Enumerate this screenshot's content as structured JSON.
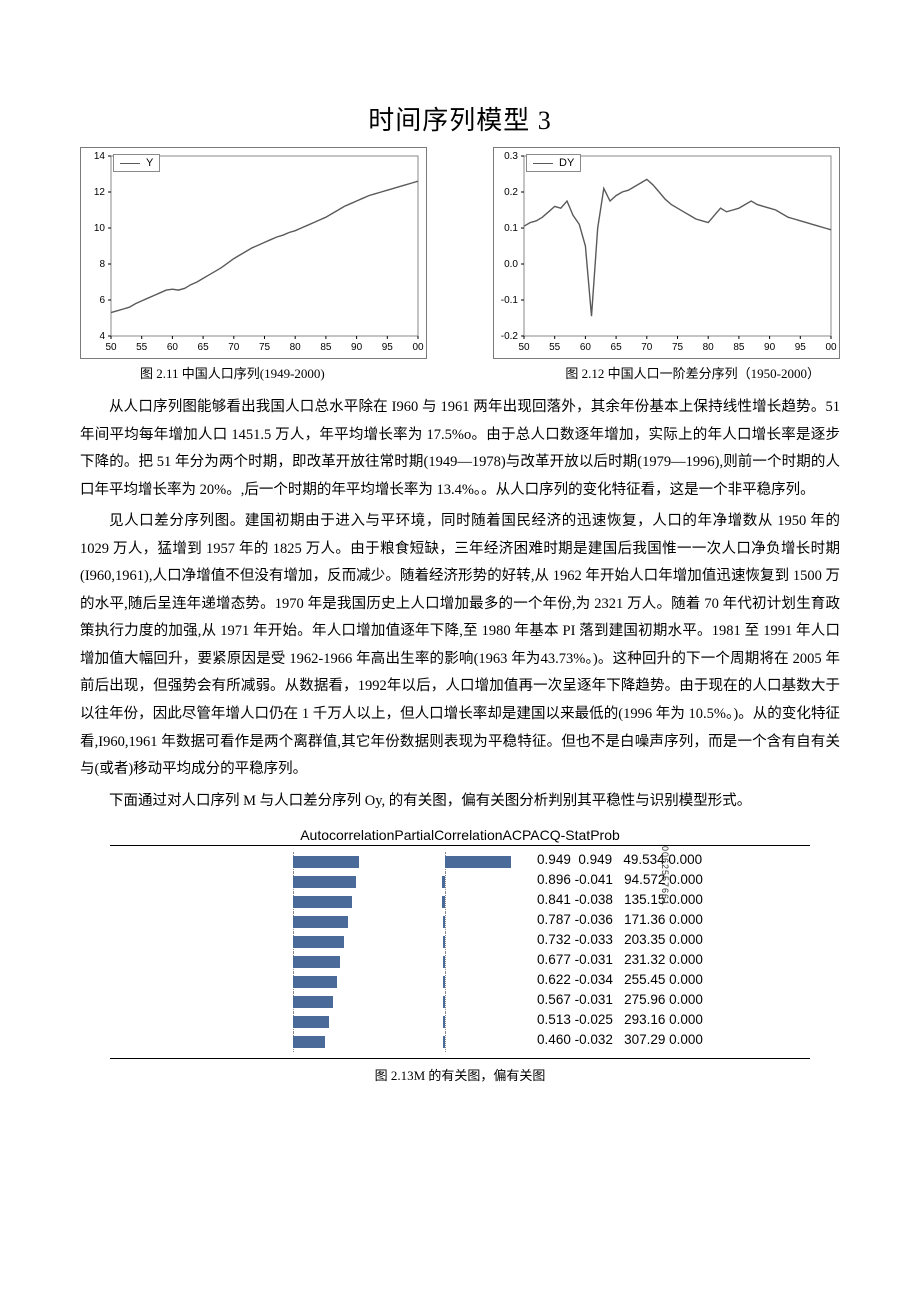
{
  "title": "时间序列模型 3",
  "chart_left": {
    "type": "line",
    "legend": "Y",
    "xlim": [
      50,
      100
    ],
    "ylim": [
      4,
      14
    ],
    "xticks": [
      50,
      55,
      60,
      65,
      70,
      75,
      80,
      85,
      90,
      95,
      100
    ],
    "xtick_labels": [
      "50",
      "55",
      "60",
      "65",
      "70",
      "75",
      "80",
      "85",
      "90",
      "95",
      "00"
    ],
    "yticks": [
      4,
      6,
      8,
      10,
      12,
      14
    ],
    "line_color": "#5a5a5a",
    "border_color": "#7a7a7a",
    "points_x": [
      50,
      51,
      52,
      53,
      54,
      55,
      56,
      57,
      58,
      59,
      60,
      61,
      62,
      63,
      64,
      65,
      66,
      67,
      68,
      69,
      70,
      71,
      72,
      73,
      74,
      75,
      76,
      77,
      78,
      79,
      80,
      81,
      82,
      83,
      84,
      85,
      86,
      87,
      88,
      89,
      90,
      91,
      92,
      93,
      94,
      95,
      96,
      97,
      98,
      99,
      100
    ],
    "points_y": [
      5.3,
      5.4,
      5.5,
      5.6,
      5.8,
      5.95,
      6.1,
      6.25,
      6.4,
      6.55,
      6.6,
      6.55,
      6.65,
      6.85,
      7.0,
      7.2,
      7.4,
      7.6,
      7.8,
      8.05,
      8.3,
      8.5,
      8.7,
      8.9,
      9.05,
      9.2,
      9.35,
      9.5,
      9.6,
      9.75,
      9.85,
      10.0,
      10.15,
      10.3,
      10.45,
      10.6,
      10.8,
      11.0,
      11.2,
      11.35,
      11.5,
      11.65,
      11.8,
      11.9,
      12.0,
      12.1,
      12.2,
      12.3,
      12.4,
      12.5,
      12.6
    ],
    "caption": "图 2.11 中国人口序列(1949-2000)"
  },
  "chart_right": {
    "type": "line",
    "legend": "DY",
    "xlim": [
      50,
      100
    ],
    "ylim": [
      -0.2,
      0.3
    ],
    "xticks": [
      50,
      55,
      60,
      65,
      70,
      75,
      80,
      85,
      90,
      95,
      100
    ],
    "xtick_labels": [
      "50",
      "55",
      "60",
      "65",
      "70",
      "75",
      "80",
      "85",
      "90",
      "95",
      "00"
    ],
    "yticks": [
      -0.2,
      -0.1,
      0.0,
      0.1,
      0.2,
      0.3
    ],
    "ytick_labels": [
      "-0.2",
      "-0.1",
      "0.0",
      "0.1",
      "0.2",
      "0.3"
    ],
    "line_color": "#5a5a5a",
    "border_color": "#7a7a7a",
    "points_x": [
      50,
      51,
      52,
      53,
      54,
      55,
      56,
      57,
      58,
      59,
      60,
      61,
      62,
      63,
      64,
      65,
      66,
      67,
      68,
      69,
      70,
      71,
      72,
      73,
      74,
      75,
      76,
      77,
      78,
      79,
      80,
      81,
      82,
      83,
      84,
      85,
      86,
      87,
      88,
      89,
      90,
      91,
      92,
      93,
      94,
      95,
      96,
      97,
      98,
      99,
      100
    ],
    "points_y": [
      0.105,
      0.115,
      0.12,
      0.13,
      0.145,
      0.16,
      0.155,
      0.175,
      0.135,
      0.11,
      0.05,
      -0.145,
      0.1,
      0.21,
      0.175,
      0.19,
      0.2,
      0.205,
      0.215,
      0.225,
      0.235,
      0.22,
      0.2,
      0.18,
      0.165,
      0.155,
      0.145,
      0.135,
      0.125,
      0.12,
      0.115,
      0.135,
      0.155,
      0.145,
      0.15,
      0.155,
      0.165,
      0.175,
      0.165,
      0.16,
      0.155,
      0.15,
      0.14,
      0.13,
      0.125,
      0.12,
      0.115,
      0.11,
      0.105,
      0.1,
      0.095
    ],
    "caption": "图 2.12  中国人口一阶差分序列（1950-2000）"
  },
  "paragraphs": {
    "p1": "从人口序列图能够看出我国人口总水平除在 I960 与 1961 两年出现回落外，其余年份基本上保持线性增长趋势。51 年间平均每年增加人口 1451.5 万人，年平均增长率为 17.5%o。由于总人口数逐年增加，实际上的年人口增长率是逐步下降的。把 51 年分为两个时期，即改革开放往常时期(1949—1978)与改革开放以后时期(1979—1996),则前一个时期的人口年平均增长率为 20%。,后一个时期的年平均增长率为 13.4%。。从人口序列的变化特征看，这是一个非平稳序列。",
    "p2": "见人口差分序列图。建国初期由于进入与平环境，同时随着国民经济的迅速恢复，人口的年净增数从 1950 年的 1029 万人，猛增到 1957 年的 1825 万人。由于粮食短缺，三年经济困难时期是建国后我国惟一一次人口净负增长时期(I960,1961),人口净增值不但没有增加，反而减少。随着经济形势的好转,从 1962 年开始人口年增加值迅速恢复到 1500 万的水平,随后呈连年递增态势。1970 年是我国历史上人口增加最多的一个年份,为 2321 万人。随着 70 年代初计划生育政策执行力度的加强,从 1971 年开始。年人口增加值逐年下降,至 1980 年基本 PI 落到建国初期水平。1981 至 1991 年人口增加值大幅回升，要紧原因是受 1962-1966 年高出生率的影响(1963 年为43.73%。)。这种回升的下一个周期将在 2005 年前后出现，但强势会有所减弱。从数据看，1992年以后，人口增加值再一次呈逐年下降趋势。由于现在的人口基数大于以往年份，因此尽管年增人口仍在 1 千万人以上，但人口增长率却是建国以来最低的(1996 年为 10.5%。)。从的变化特征看,I960,1961 年数据可看作是两个离群值,其它年份数据则表现为平稳特征。但也不是白噪声序列，而是一个含有自有关与(或者)移动平均成分的平稳序列。",
    "p3": "下面通过对人口序列 M 与人口差分序列 Oy, 的有关图，偏有关图分析判别其平稳性与识别模型形式。"
  },
  "corr": {
    "header": "AutocorrelationPartialCorrelationACPACQ-StatProb",
    "ac": [
      0.949,
      0.896,
      0.841,
      0.787,
      0.732,
      0.677,
      0.622,
      0.567,
      0.513,
      0.46
    ],
    "pac": [
      0.949,
      -0.041,
      -0.038,
      -0.036,
      -0.033,
      -0.031,
      -0.034,
      -0.031,
      -0.025,
      -0.032
    ],
    "qstat": [
      49.534,
      94.572,
      135.15,
      171.36,
      203.35,
      231.32,
      255.45,
      275.96,
      293.16,
      307.29
    ],
    "prob": [
      0.0,
      0.0,
      0.0,
      0.0,
      0.0,
      0.0,
      0.0,
      0.0,
      0.0,
      0.0
    ],
    "bar_color": "#4a6a9a",
    "decor_text": "0062557661",
    "caption": "图 2.13M 的有关图，偏有关图"
  }
}
